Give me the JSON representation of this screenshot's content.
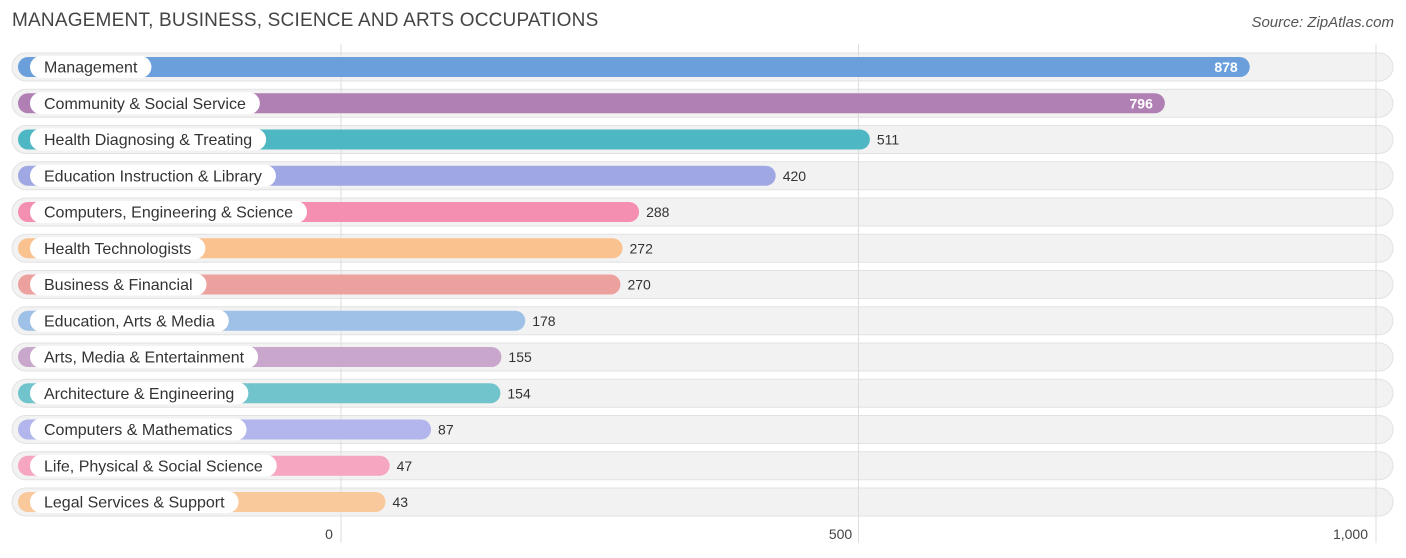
{
  "header": {
    "title": "MANAGEMENT, BUSINESS, SCIENCE AND ARTS OCCUPATIONS",
    "source": "Source: ZipAtlas.com"
  },
  "chart_data": {
    "type": "bar",
    "orientation": "horizontal",
    "title": "MANAGEMENT, BUSINESS, SCIENCE AND ARTS OCCUPATIONS",
    "categories": [
      "Management",
      "Community & Social Service",
      "Health Diagnosing & Treating",
      "Education Instruction & Library",
      "Computers, Engineering & Science",
      "Health Technologists",
      "Business & Financial",
      "Education, Arts & Media",
      "Arts, Media & Entertainment",
      "Architecture & Engineering",
      "Computers & Mathematics",
      "Life, Physical & Social Science",
      "Legal Services & Support"
    ],
    "values": [
      878,
      796,
      511,
      420,
      288,
      272,
      270,
      178,
      155,
      154,
      87,
      47,
      43
    ],
    "value_labels": [
      "878",
      "796",
      "511",
      "420",
      "288",
      "272",
      "270",
      "178",
      "155",
      "154",
      "87",
      "47",
      "43"
    ],
    "colors": [
      "#6a9fdc",
      "#b07fb4",
      "#4db8c4",
      "#a0a8e4",
      "#f48fb1",
      "#f9c28e",
      "#eca19f",
      "#9fc1e8",
      "#c9a6cc",
      "#72c4cc",
      "#b2b6ec",
      "#f6a6c1",
      "#f9c99c"
    ],
    "xlim": [
      0,
      1000
    ],
    "xticks": [
      0,
      500,
      1000
    ],
    "xtick_labels": [
      "0",
      "500",
      "1,000"
    ],
    "grid": true,
    "legend": "none"
  }
}
